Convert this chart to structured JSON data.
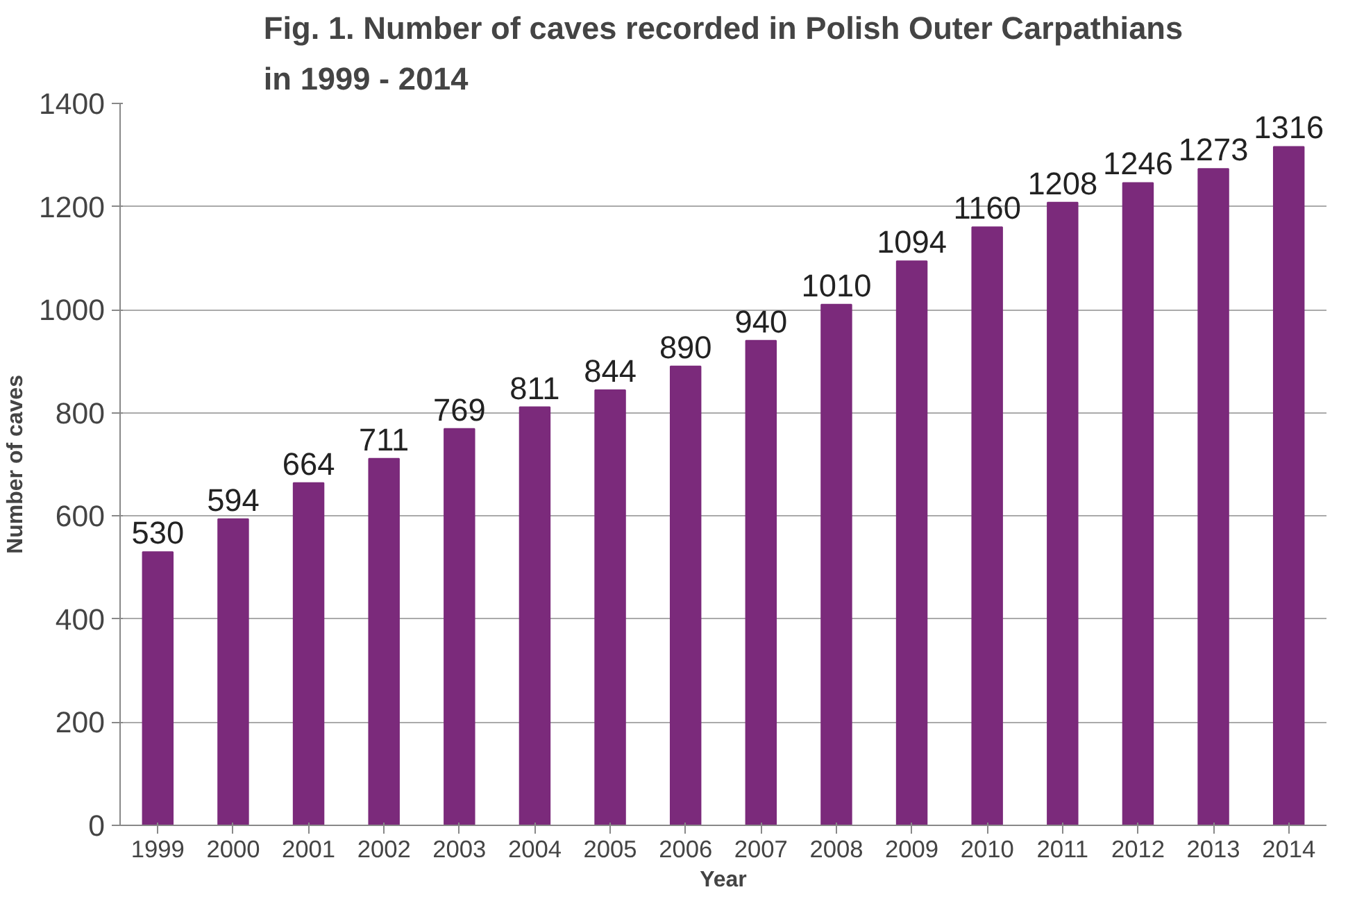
{
  "chart_data": {
    "type": "bar",
    "title": "Fig. 1. Number of caves recorded in Polish Outer Carpathians\nin 1999 - 2014",
    "xlabel": "Year",
    "ylabel": "Number of caves",
    "categories": [
      "1999",
      "2000",
      "2001",
      "2002",
      "2003",
      "2004",
      "2005",
      "2006",
      "2007",
      "2008",
      "2009",
      "2010",
      "2011",
      "2012",
      "2013",
      "2014"
    ],
    "values": [
      530,
      594,
      664,
      711,
      769,
      811,
      844,
      890,
      940,
      1010,
      1094,
      1160,
      1208,
      1246,
      1273,
      1316
    ],
    "color": "#7b2a7b",
    "ylim": [
      0,
      1400
    ],
    "yticks": [
      0,
      200,
      400,
      600,
      800,
      1000,
      1200,
      1400
    ],
    "grid": "y",
    "data_labels": true
  }
}
